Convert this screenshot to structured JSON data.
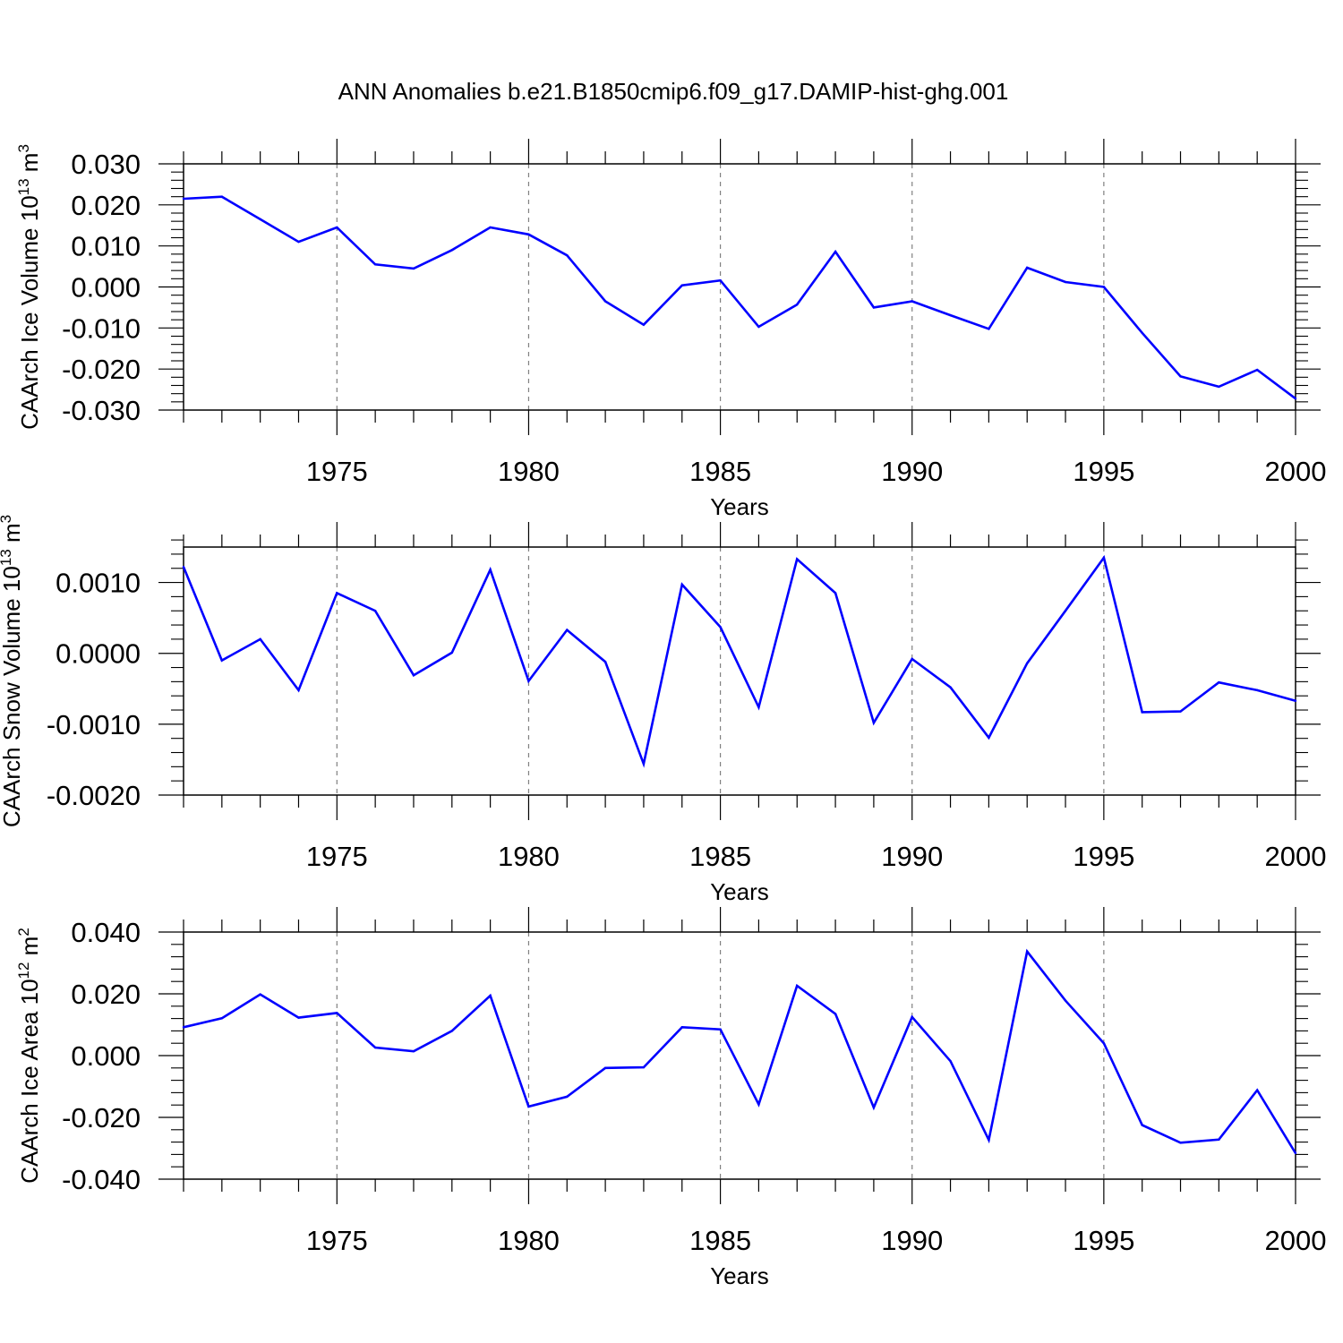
{
  "title": "ANN Anomalies b.e21.B1850cmip6.f09_g17.DAMIP-hist-ghg.001",
  "colors": {
    "line": "#0000ff",
    "axis": "#000000",
    "grid": "#808080"
  },
  "chart_data": [
    {
      "type": "line",
      "ylabel": "CAArch Ice Volume 10",
      "ylabel_exp": "13",
      "ylabel_unit": " m",
      "ylabel_unit_exp": "3",
      "xlabel": "Years",
      "xlim": [
        1971,
        2000
      ],
      "ylim": [
        -0.03,
        0.03
      ],
      "x_ticks": [
        "1975",
        "1980",
        "1985",
        "1990",
        "1995",
        "2000"
      ],
      "y_ticks": [
        "0.030",
        "0.020",
        "0.010",
        "0.000",
        "-0.010",
        "-0.020",
        "-0.030"
      ],
      "y_tick_values": [
        0.03,
        0.02,
        0.01,
        0.0,
        -0.01,
        -0.02,
        -0.03
      ],
      "y_minor_step": 0.002,
      "grid_x": true,
      "x": [
        1971,
        1972,
        1973,
        1974,
        1975,
        1976,
        1977,
        1978,
        1979,
        1980,
        1981,
        1982,
        1983,
        1984,
        1985,
        1986,
        1987,
        1988,
        1989,
        1990,
        1991,
        1992,
        1993,
        1994,
        1995,
        1996,
        1997,
        1998,
        1999,
        2000
      ],
      "values": [
        0.0215,
        0.022,
        0.0165,
        0.011,
        0.0145,
        0.0055,
        0.0045,
        0.009,
        0.0145,
        0.0128,
        0.0077,
        -0.0035,
        -0.0092,
        0.0004,
        0.0016,
        -0.0097,
        -0.0043,
        0.0086,
        -0.005,
        -0.0035,
        -0.0069,
        -0.0102,
        0.0047,
        0.0012,
        0.0,
        -0.0112,
        -0.0218,
        -0.0243,
        -0.0202,
        -0.0272
      ]
    },
    {
      "type": "line",
      "ylabel": "CAArch Snow Volume 10",
      "ylabel_exp": "13",
      "ylabel_unit": " m",
      "ylabel_unit_exp": "3",
      "xlabel": "Years",
      "xlim": [
        1971,
        2000
      ],
      "ylim": [
        -0.002,
        0.0015
      ],
      "x_ticks": [
        "1975",
        "1980",
        "1985",
        "1990",
        "1995",
        "2000"
      ],
      "y_ticks": [
        "0.0010",
        "0.0000",
        "-0.0010",
        "-0.0020"
      ],
      "y_tick_values": [
        0.001,
        0.0,
        -0.001,
        -0.002
      ],
      "y_minor_step": 0.0002,
      "grid_x": true,
      "x": [
        1971,
        1972,
        1973,
        1974,
        1975,
        1976,
        1977,
        1978,
        1979,
        1980,
        1981,
        1982,
        1983,
        1984,
        1985,
        1986,
        1987,
        1988,
        1989,
        1990,
        1991,
        1992,
        1993,
        1994,
        1995,
        1996,
        1997,
        1998,
        1999,
        2000
      ],
      "values": [
        0.00122,
        -0.0001,
        0.0002,
        -0.00052,
        0.00085,
        0.0006,
        -0.00031,
        1e-05,
        0.00118,
        -0.00039,
        0.00033,
        -0.00012,
        -0.00156,
        0.00097,
        0.00037,
        -0.00076,
        0.00133,
        0.00085,
        -0.00098,
        -8e-05,
        -0.00048,
        -0.00119,
        -0.00014,
        0.0006,
        0.00135,
        -0.00083,
        -0.00082,
        -0.00041,
        -0.00052,
        -0.00067
      ]
    },
    {
      "type": "line",
      "ylabel": "CAArch Ice Area 10",
      "ylabel_exp": "12",
      "ylabel_unit": " m",
      "ylabel_unit_exp": "2",
      "xlabel": "Years",
      "xlim": [
        1971,
        2000
      ],
      "ylim": [
        -0.04,
        0.04
      ],
      "x_ticks": [
        "1975",
        "1980",
        "1985",
        "1990",
        "1995",
        "2000"
      ],
      "y_ticks": [
        "0.040",
        "0.020",
        "0.000",
        "-0.020",
        "-0.040"
      ],
      "y_tick_values": [
        0.04,
        0.02,
        0.0,
        -0.02,
        -0.04
      ],
      "y_minor_step": 0.004,
      "grid_x": true,
      "x": [
        1971,
        1972,
        1973,
        1974,
        1975,
        1976,
        1977,
        1978,
        1979,
        1980,
        1981,
        1982,
        1983,
        1984,
        1985,
        1986,
        1987,
        1988,
        1989,
        1990,
        1991,
        1992,
        1993,
        1994,
        1995,
        1996,
        1997,
        1998,
        1999,
        2000
      ],
      "values": [
        0.0092,
        0.0121,
        0.0198,
        0.0123,
        0.0138,
        0.0026,
        0.0014,
        0.008,
        0.0194,
        -0.0165,
        -0.0133,
        -0.004,
        -0.0038,
        0.0092,
        0.0085,
        -0.0158,
        0.0226,
        0.0135,
        -0.0168,
        0.0125,
        -0.0018,
        -0.0273,
        0.0337,
        0.0178,
        0.004,
        -0.0225,
        -0.0282,
        -0.0272,
        -0.0112,
        -0.0316
      ]
    }
  ]
}
